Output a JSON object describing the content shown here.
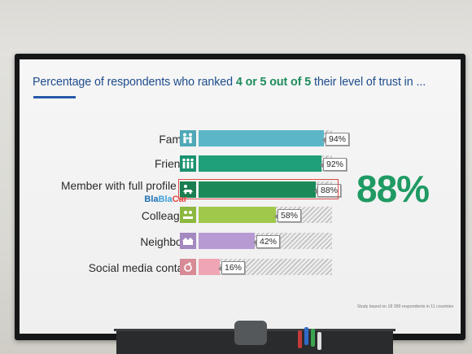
{
  "title": {
    "before": "Percentage of respondents who ranked ",
    "highlight": "4 or 5 out of 5",
    "after": " their level of trust in ..."
  },
  "big_stat": "88%",
  "footnote": "Study based on 18 289 respondents in 11 countries",
  "logo": {
    "part1": "Bla",
    "part2": "Bla",
    "part3": "Car"
  },
  "colors": {
    "title": "#1e4c8c",
    "highlight": "#1e8c5c",
    "stat": "#1f9a63",
    "outline": "#d84a4a"
  },
  "chart_data": {
    "type": "bar",
    "orientation": "horizontal",
    "categories": [
      "Family",
      "Friends",
      "Member with full profile on",
      "Colleague",
      "Neighbour",
      "Social media contact"
    ],
    "values": [
      94,
      92,
      88,
      58,
      42,
      16
    ],
    "value_labels": [
      "94%",
      "92%",
      "88%",
      "58%",
      "42%",
      "16%"
    ],
    "bar_colors": [
      "#5bb7c8",
      "#1fa07a",
      "#1b8a58",
      "#a0c94c",
      "#b79ad2",
      "#f0a5b4"
    ],
    "icons": [
      "family-icon",
      "friends-icon",
      "car-member-icon",
      "colleague-icon",
      "neighbour-house-icon",
      "social-media-icon"
    ],
    "icon_colors": [
      "#4fa8b8",
      "#1a9270",
      "#1a7e50",
      "#8db840",
      "#a488c0",
      "#d88a96"
    ],
    "xlim": [
      0,
      100
    ],
    "highlighted_category": "Member with full profile on"
  }
}
